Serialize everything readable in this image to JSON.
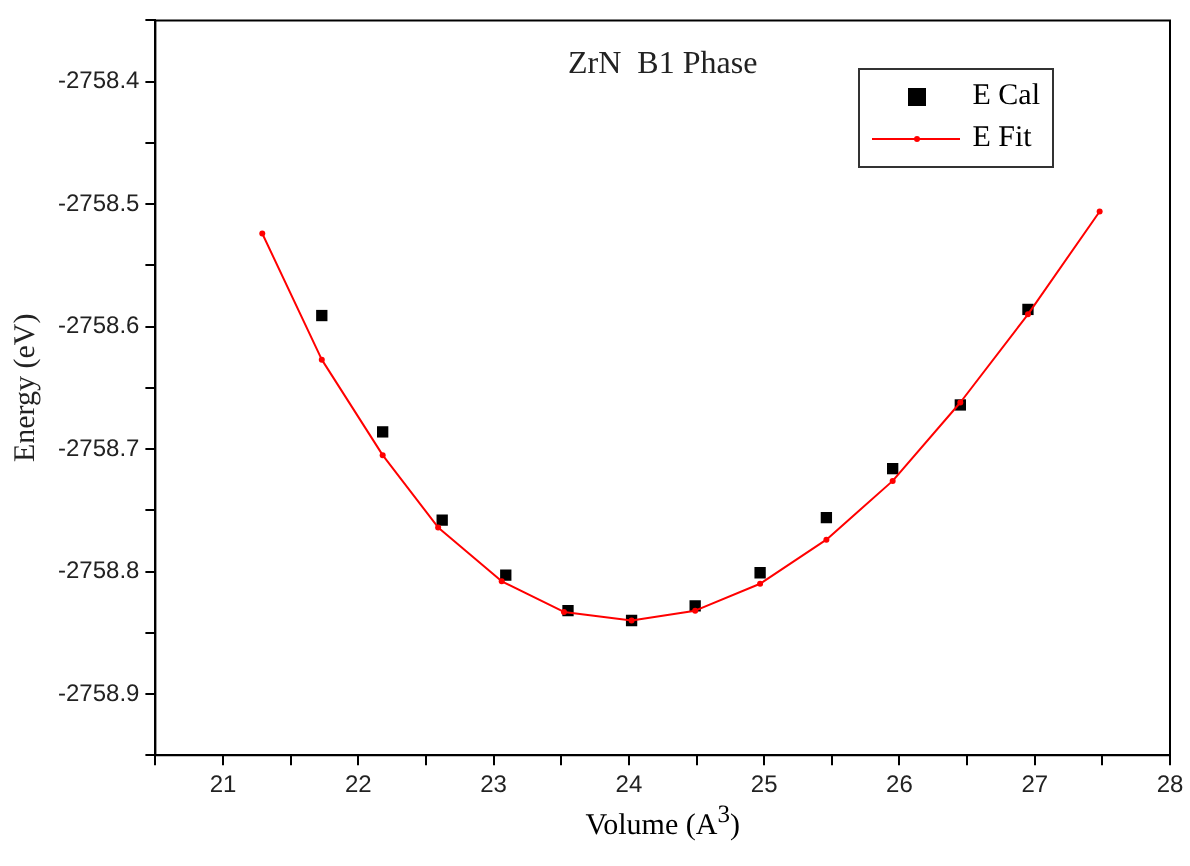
{
  "chart_data": {
    "type": "scatter",
    "title": "ZrN  B1 Phase",
    "xlabel": "Volume (A$^{3}$)",
    "ylabel": "Energy (eV)",
    "xlim": [
      20.5,
      28
    ],
    "ylim": [
      -2758.95,
      -2758.35
    ],
    "xticks": [
      {
        "value": 20.5,
        "label": null
      },
      21,
      {
        "value": 21.5,
        "label": null
      },
      22,
      {
        "value": 22.5,
        "label": null
      },
      23,
      {
        "value": 23.5,
        "label": null
      },
      24,
      {
        "value": 24.5,
        "label": null
      },
      25,
      {
        "value": 25.5,
        "label": null
      },
      26,
      {
        "value": 26.5,
        "label": null
      },
      27,
      {
        "value": 27.5,
        "label": null
      },
      28
    ],
    "yticks": [
      {
        "value": -2758.35,
        "label": null
      },
      -2758.4,
      {
        "value": -2758.45,
        "label": null
      },
      -2758.5,
      {
        "value": -2758.55,
        "label": null
      },
      -2758.6,
      {
        "value": -2758.65,
        "label": null
      },
      -2758.7,
      {
        "value": -2758.75,
        "label": null
      },
      -2758.8,
      {
        "value": -2758.85,
        "label": null
      },
      -2758.9,
      {
        "value": -2758.95,
        "label": null
      }
    ],
    "grid": false,
    "legend": "top right",
    "series": [
      {
        "name": "E Cal",
        "type": "scatter",
        "marker": "square",
        "color": "#000000",
        "x": [
          21.73,
          22.18,
          22.62,
          23.09,
          23.55,
          24.02,
          24.49,
          24.97,
          25.46,
          25.95,
          26.45,
          26.95
        ],
        "values": [
          -2758.591,
          -2758.686,
          -2758.758,
          -2758.803,
          -2758.832,
          -2758.84,
          -2758.828,
          -2758.801,
          -2758.756,
          -2758.716,
          -2758.664,
          -2758.586
        ]
      },
      {
        "name": "E Fit",
        "type": "line",
        "marker": "circle",
        "line_style": "solid",
        "color": "#ff0000",
        "x": [
          21.29,
          21.73,
          22.18,
          22.59,
          23.06,
          23.52,
          24.02,
          24.49,
          24.97,
          25.46,
          25.95,
          26.45,
          26.95,
          27.48
        ],
        "values": [
          -2758.524,
          -2758.627,
          -2758.705,
          -2758.764,
          -2758.808,
          -2758.833,
          -2758.84,
          -2758.832,
          -2758.81,
          -2758.774,
          -2758.726,
          -2758.662,
          -2758.59,
          -2758.506
        ]
      }
    ]
  }
}
